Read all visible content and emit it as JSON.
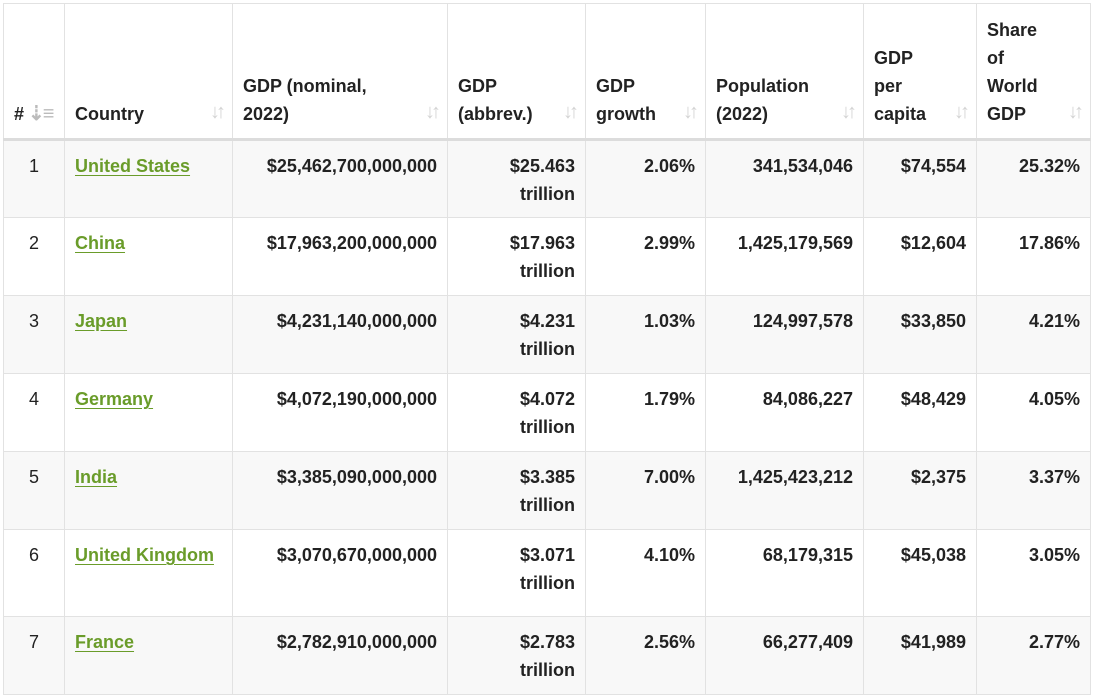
{
  "table": {
    "headers": [
      {
        "label": "#",
        "sort_icon": "sort-numeric-down-icon"
      },
      {
        "label": "Country",
        "sort_icon": "sort-icon"
      },
      {
        "label": "GDP (nominal, 2022)",
        "sort_icon": "sort-icon"
      },
      {
        "label": "GDP (abbrev.)",
        "sort_icon": "sort-icon"
      },
      {
        "label": "GDP growth",
        "sort_icon": "sort-icon"
      },
      {
        "label": "Population (2022)",
        "sort_icon": "sort-icon"
      },
      {
        "label": "GDP per capita",
        "sort_icon": "sort-icon"
      },
      {
        "label": "Share of World GDP",
        "sort_icon": "sort-icon"
      }
    ],
    "rows": [
      {
        "rank": "1",
        "country": "United States",
        "gdp": "$25,462,700,000,000",
        "abbrev": "$25.463 trillion",
        "growth": "2.06%",
        "population": "341,534,046",
        "per_capita": "$74,554",
        "share": "25.32%"
      },
      {
        "rank": "2",
        "country": "China",
        "gdp": "$17,963,200,000,000",
        "abbrev": "$17.963 trillion",
        "growth": "2.99%",
        "population": "1,425,179,569",
        "per_capita": "$12,604",
        "share": "17.86%"
      },
      {
        "rank": "3",
        "country": "Japan",
        "gdp": "$4,231,140,000,000",
        "abbrev": "$4.231 trillion",
        "growth": "1.03%",
        "population": "124,997,578",
        "per_capita": "$33,850",
        "share": "4.21%"
      },
      {
        "rank": "4",
        "country": "Germany",
        "gdp": "$4,072,190,000,000",
        "abbrev": "$4.072 trillion",
        "growth": "1.79%",
        "population": "84,086,227",
        "per_capita": "$48,429",
        "share": "4.05%"
      },
      {
        "rank": "5",
        "country": "India",
        "gdp": "$3,385,090,000,000",
        "abbrev": "$3.385 trillion",
        "growth": "7.00%",
        "population": "1,425,423,212",
        "per_capita": "$2,375",
        "share": "3.37%"
      },
      {
        "rank": "6",
        "country": "United Kingdom",
        "gdp": "$3,070,670,000,000",
        "abbrev": "$3.071 trillion",
        "growth": "4.10%",
        "population": "68,179,315",
        "per_capita": "$45,038",
        "share": "3.05%"
      },
      {
        "rank": "7",
        "country": "France",
        "gdp": "$2,782,910,000,000",
        "abbrev": "$2.783 trillion",
        "growth": "2.56%",
        "population": "66,277,409",
        "per_capita": "$41,989",
        "share": "2.77%"
      }
    ]
  },
  "colors": {
    "link": "#6a9c2a",
    "text": "#222222",
    "stripe": "#f8f8f8",
    "border": "#e2e2e2"
  }
}
